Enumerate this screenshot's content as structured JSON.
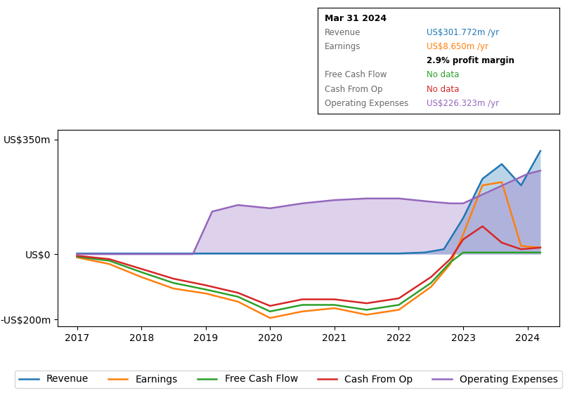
{
  "chart_data": {
    "type": "line",
    "xlim": [
      2016.7,
      2024.5
    ],
    "xticks": [
      2017,
      2018,
      2019,
      2020,
      2021,
      2022,
      2023,
      2024
    ],
    "ylim": [
      -220,
      380
    ],
    "yticks": [
      {
        "value": -200,
        "label": "-US$200m"
      },
      {
        "value": 0,
        "label": "US$0"
      },
      {
        "value": 350,
        "label": "US$350m"
      }
    ],
    "legend": "lower center",
    "series": [
      {
        "name": "Revenue",
        "type": "area",
        "x": [
          2017.0,
          2017.5,
          2018.0,
          2018.5,
          2019.0,
          2019.5,
          2020.0,
          2020.5,
          2021.0,
          2021.5,
          2022.0,
          2022.4,
          2022.7,
          2023.0,
          2023.3,
          2023.6,
          2023.9,
          2024.2
        ],
        "values": [
          2,
          2,
          2,
          2,
          2,
          2,
          2,
          2,
          2,
          2,
          2,
          5,
          15,
          110,
          230,
          275,
          210,
          315
        ]
      },
      {
        "name": "Earnings",
        "type": "line",
        "x": [
          2017.0,
          2017.5,
          2018.0,
          2018.5,
          2019.0,
          2019.5,
          2020.0,
          2020.5,
          2021.0,
          2021.5,
          2022.0,
          2022.5,
          2022.8,
          2023.0,
          2023.3,
          2023.6,
          2023.9,
          2024.2
        ],
        "values": [
          -10,
          -30,
          -70,
          -105,
          -120,
          -145,
          -195,
          -175,
          -165,
          -185,
          -170,
          -100,
          -30,
          60,
          210,
          220,
          25,
          20
        ]
      },
      {
        "name": "Free Cash Flow",
        "type": "line",
        "x": [
          2017.0,
          2017.5,
          2018.0,
          2018.5,
          2019.0,
          2019.5,
          2020.0,
          2020.5,
          2021.0,
          2021.5,
          2022.0,
          2022.5,
          2022.8,
          2023.0,
          2023.5,
          2024.0,
          2024.2
        ],
        "values": [
          -8,
          -20,
          -55,
          -88,
          -108,
          -130,
          -175,
          -155,
          -155,
          -170,
          -155,
          -88,
          -25,
          5,
          5,
          5,
          5
        ]
      },
      {
        "name": "Cash From Op",
        "type": "line",
        "x": [
          2017.0,
          2017.5,
          2018.0,
          2018.5,
          2019.0,
          2019.5,
          2020.0,
          2020.5,
          2021.0,
          2021.5,
          2022.0,
          2022.5,
          2022.8,
          2023.0,
          2023.3,
          2023.6,
          2023.9,
          2024.2
        ],
        "values": [
          -5,
          -15,
          -45,
          -75,
          -95,
          -118,
          -158,
          -138,
          -138,
          -150,
          -135,
          -70,
          -15,
          45,
          85,
          35,
          15,
          20
        ]
      },
      {
        "name": "Operating Expenses",
        "type": "area",
        "x": [
          2017.0,
          2018.0,
          2018.8,
          2019.1,
          2019.5,
          2020.0,
          2020.5,
          2021.0,
          2021.5,
          2022.0,
          2022.5,
          2022.8,
          2023.0,
          2023.5,
          2024.0,
          2024.2
        ],
        "values": [
          0,
          0,
          0,
          130,
          150,
          140,
          155,
          165,
          170,
          170,
          160,
          155,
          155,
          200,
          245,
          255
        ]
      }
    ],
    "annotations": [
      {
        "title": "Mar 31 2024",
        "rows": [
          {
            "label": "Revenue",
            "value": "US$301.772m /yr"
          },
          {
            "label": "Earnings",
            "value": "US$8.650m /yr",
            "sub": "2.9% profit margin"
          },
          {
            "label": "Free Cash Flow",
            "value": "No data"
          },
          {
            "label": "Cash From Op",
            "value": "No data"
          },
          {
            "label": "Operating Expenses",
            "value": "US$226.323m /yr"
          }
        ]
      }
    ]
  }
}
